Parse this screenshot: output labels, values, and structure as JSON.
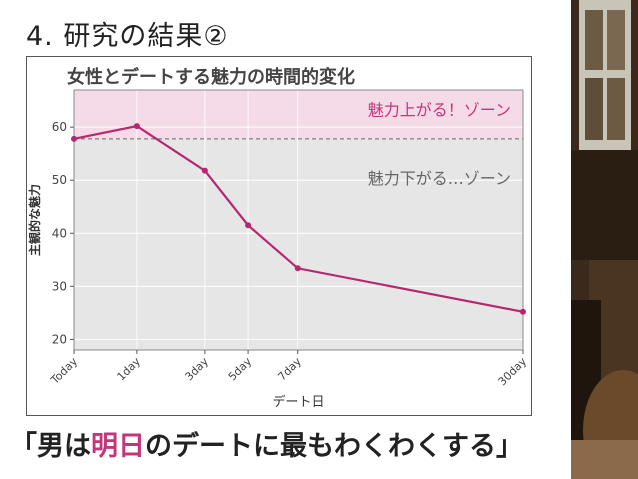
{
  "slide": {
    "title": "4. 研究の結果②"
  },
  "caption": {
    "open": "「男は",
    "highlight": "明日",
    "rest": "のデートに最もわくわくする」"
  },
  "colors": {
    "line": "#b5286f",
    "up_zone": "#f5dbe8",
    "down_zone": "#e6e6e6",
    "up_label": "#c4357a",
    "down_label": "#666666",
    "caption_highlight": "#c4357a"
  },
  "chart_data": {
    "type": "line",
    "title": "女性とデートする魅力の時間的変化",
    "xlabel": "デート日",
    "ylabel": "主観的な魅力",
    "x": [
      -0.6,
      0,
      2,
      4,
      7,
      30
    ],
    "x_tick_values": [
      -0.6,
      0,
      2,
      4,
      7,
      30
    ],
    "x_tick_labels": [
      "Today",
      "1day",
      "3day",
      "5day",
      "7day",
      "30day"
    ],
    "x_scale": "sqrt",
    "xlim": [
      -0.6,
      30
    ],
    "series": [
      {
        "values": [
          57.8,
          60.2,
          51.8,
          41.5,
          33.4,
          25.2
        ]
      }
    ],
    "ylim": [
      18,
      67
    ],
    "y_ticks": [
      20,
      30,
      40,
      50,
      60
    ],
    "baseline": 57.8,
    "zones": [
      {
        "label": "魅力上がる！ゾーン",
        "from": 57.8,
        "to": 67
      },
      {
        "label": "魅力下がる…ゾーン",
        "from": 18,
        "to": 57.8
      }
    ],
    "grid": true
  }
}
